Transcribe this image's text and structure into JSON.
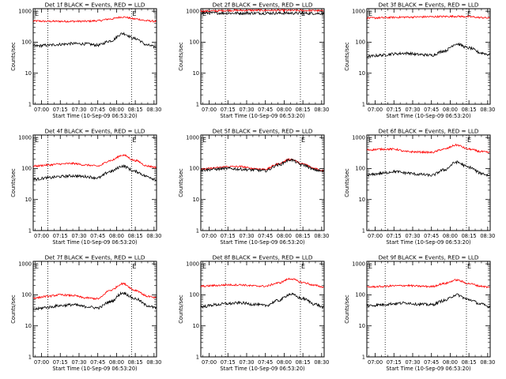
{
  "figure": {
    "y_axis_label": "Counts/sec",
    "x_axis_label": "Start Time (10-Sep-09 06:53:20)",
    "x_tick_labels": [
      "07:00",
      "07:15",
      "07:30",
      "07:45",
      "08:00",
      "08:15",
      "08:30"
    ],
    "y_tick_labels": [
      "1",
      "10",
      "100",
      "1000"
    ],
    "marker_left": "E",
    "marker_right": "E"
  },
  "colors": {
    "events": "#000000",
    "lld": "#ff0000"
  },
  "chart_data": [
    {
      "type": "line",
      "title": "Det 1f BLACK = Events, RED = LLD",
      "x": [
        "06:55",
        "07:05",
        "07:15",
        "07:25",
        "07:35",
        "07:45",
        "07:55",
        "08:05",
        "08:15",
        "08:25",
        "08:31"
      ],
      "series": [
        {
          "name": "LLD",
          "values": [
            480,
            470,
            470,
            470,
            470,
            490,
            560,
            650,
            560,
            490,
            470
          ]
        },
        {
          "name": "Events",
          "values": [
            75,
            80,
            85,
            90,
            88,
            80,
            110,
            190,
            130,
            80,
            70
          ]
        }
      ],
      "xlim": [
        "06:53:20",
        "08:32"
      ],
      "ylim": [
        1,
        1200
      ],
      "yscale": "log",
      "vlines": [
        "07:05",
        "08:12"
      ],
      "grid": false
    },
    {
      "type": "line",
      "title": "Det 2f BLACK = Events, RED = LLD",
      "x": [
        "06:55",
        "07:05",
        "07:15",
        "07:25",
        "07:35",
        "07:45",
        "07:55",
        "08:05",
        "08:15",
        "08:25",
        "08:31"
      ],
      "series": [
        {
          "name": "LLD",
          "values": [
            1000,
            1020,
            1050,
            1060,
            1060,
            1060,
            1060,
            1050,
            1050,
            1040,
            1020
          ]
        },
        {
          "name": "Events",
          "values": [
            870,
            870,
            860,
            860,
            860,
            860,
            860,
            860,
            850,
            850,
            840
          ]
        }
      ],
      "xlim": [
        "06:53:20",
        "08:32"
      ],
      "ylim": [
        1,
        1200
      ],
      "yscale": "log",
      "vlines": [
        "07:13",
        "08:13"
      ],
      "grid": false
    },
    {
      "type": "line",
      "title": "Det 3f BLACK = Events, RED = LLD",
      "x": [
        "06:55",
        "07:05",
        "07:15",
        "07:25",
        "07:35",
        "07:45",
        "07:55",
        "08:05",
        "08:15",
        "08:25",
        "08:31"
      ],
      "series": [
        {
          "name": "LLD",
          "values": [
            600,
            610,
            630,
            640,
            650,
            660,
            670,
            680,
            660,
            620,
            600
          ]
        },
        {
          "name": "Events",
          "values": [
            35,
            38,
            42,
            44,
            40,
            38,
            52,
            88,
            65,
            45,
            40
          ]
        }
      ],
      "xlim": [
        "06:53:20",
        "08:32"
      ],
      "ylim": [
        1,
        1200
      ],
      "yscale": "log",
      "vlines": [
        "07:08",
        "08:13"
      ],
      "grid": false
    },
    {
      "type": "line",
      "title": "Det 4f BLACK = Events, RED = LLD",
      "x": [
        "06:55",
        "07:05",
        "07:15",
        "07:25",
        "07:35",
        "07:45",
        "07:55",
        "08:05",
        "08:15",
        "08:25",
        "08:31"
      ],
      "series": [
        {
          "name": "LLD",
          "values": [
            120,
            130,
            140,
            145,
            130,
            120,
            180,
            270,
            180,
            120,
            110
          ]
        },
        {
          "name": "Events",
          "values": [
            45,
            50,
            55,
            58,
            55,
            50,
            80,
            120,
            80,
            55,
            45
          ]
        }
      ],
      "xlim": [
        "06:53:20",
        "08:32"
      ],
      "ylim": [
        1,
        1200
      ],
      "yscale": "log",
      "vlines": [
        "07:05",
        "08:12"
      ],
      "grid": false
    },
    {
      "type": "line",
      "title": "Det 5f BLACK = Events, RED = LLD",
      "x": [
        "06:55",
        "07:05",
        "07:15",
        "07:25",
        "07:35",
        "07:45",
        "07:55",
        "08:05",
        "08:15",
        "08:25",
        "08:31"
      ],
      "series": [
        {
          "name": "LLD",
          "values": [
            95,
            105,
            115,
            115,
            100,
            95,
            140,
            200,
            140,
            100,
            85
          ]
        },
        {
          "name": "Events",
          "values": [
            90,
            95,
            100,
            95,
            90,
            85,
            130,
            190,
            130,
            90,
            80
          ]
        }
      ],
      "xlim": [
        "06:53:20",
        "08:32"
      ],
      "ylim": [
        1,
        1200
      ],
      "yscale": "log",
      "vlines": [
        "07:13",
        "08:13"
      ],
      "grid": false
    },
    {
      "type": "line",
      "title": "Det 6f BLACK = Events, RED = LLD",
      "x": [
        "06:55",
        "07:05",
        "07:15",
        "07:25",
        "07:35",
        "07:45",
        "07:55",
        "08:05",
        "08:15",
        "08:25",
        "08:31"
      ],
      "series": [
        {
          "name": "LLD",
          "values": [
            400,
            420,
            420,
            350,
            340,
            330,
            420,
            570,
            420,
            350,
            330
          ]
        },
        {
          "name": "Events",
          "values": [
            62,
            70,
            80,
            72,
            65,
            60,
            90,
            160,
            110,
            70,
            60
          ]
        }
      ],
      "xlim": [
        "06:53:20",
        "08:32"
      ],
      "ylim": [
        1,
        1200
      ],
      "yscale": "log",
      "vlines": [
        "07:08",
        "08:13"
      ],
      "grid": false
    },
    {
      "type": "line",
      "title": "Det 7f BLACK = Events, RED = LLD",
      "x": [
        "06:55",
        "07:05",
        "07:15",
        "07:25",
        "07:35",
        "07:45",
        "07:55",
        "08:05",
        "08:15",
        "08:25",
        "08:31"
      ],
      "series": [
        {
          "name": "LLD",
          "values": [
            80,
            90,
            100,
            95,
            80,
            75,
            140,
            230,
            140,
            90,
            80
          ]
        },
        {
          "name": "Events",
          "values": [
            35,
            40,
            45,
            48,
            42,
            38,
            60,
            115,
            75,
            45,
            38
          ]
        }
      ],
      "xlim": [
        "06:53:20",
        "08:32"
      ],
      "ylim": [
        1,
        1200
      ],
      "yscale": "log",
      "vlines": [
        "07:05",
        "08:12"
      ],
      "grid": false
    },
    {
      "type": "line",
      "title": "Det 8f BLACK = Events, RED = LLD",
      "x": [
        "06:55",
        "07:05",
        "07:15",
        "07:25",
        "07:35",
        "07:45",
        "07:55",
        "08:05",
        "08:15",
        "08:25",
        "08:31"
      ],
      "series": [
        {
          "name": "LLD",
          "values": [
            190,
            200,
            210,
            210,
            195,
            190,
            240,
            330,
            250,
            200,
            180
          ]
        },
        {
          "name": "Events",
          "values": [
            42,
            48,
            52,
            55,
            50,
            45,
            65,
            105,
            75,
            50,
            40
          ]
        }
      ],
      "xlim": [
        "06:53:20",
        "08:32"
      ],
      "ylim": [
        1,
        1200
      ],
      "yscale": "log",
      "vlines": [
        "07:13",
        "08:13"
      ],
      "grid": false
    },
    {
      "type": "line",
      "title": "Det 9f BLACK = Events, RED = LLD",
      "x": [
        "06:55",
        "07:05",
        "07:15",
        "07:25",
        "07:35",
        "07:45",
        "07:55",
        "08:05",
        "08:15",
        "08:25",
        "08:31"
      ],
      "series": [
        {
          "name": "LLD",
          "values": [
            180,
            185,
            195,
            200,
            190,
            185,
            230,
            300,
            230,
            190,
            175
          ]
        },
        {
          "name": "Events",
          "values": [
            45,
            48,
            52,
            55,
            50,
            48,
            65,
            100,
            70,
            50,
            42
          ]
        }
      ],
      "xlim": [
        "06:53:20",
        "08:32"
      ],
      "ylim": [
        1,
        1200
      ],
      "yscale": "log",
      "vlines": [
        "07:08",
        "08:13"
      ],
      "grid": false
    }
  ]
}
